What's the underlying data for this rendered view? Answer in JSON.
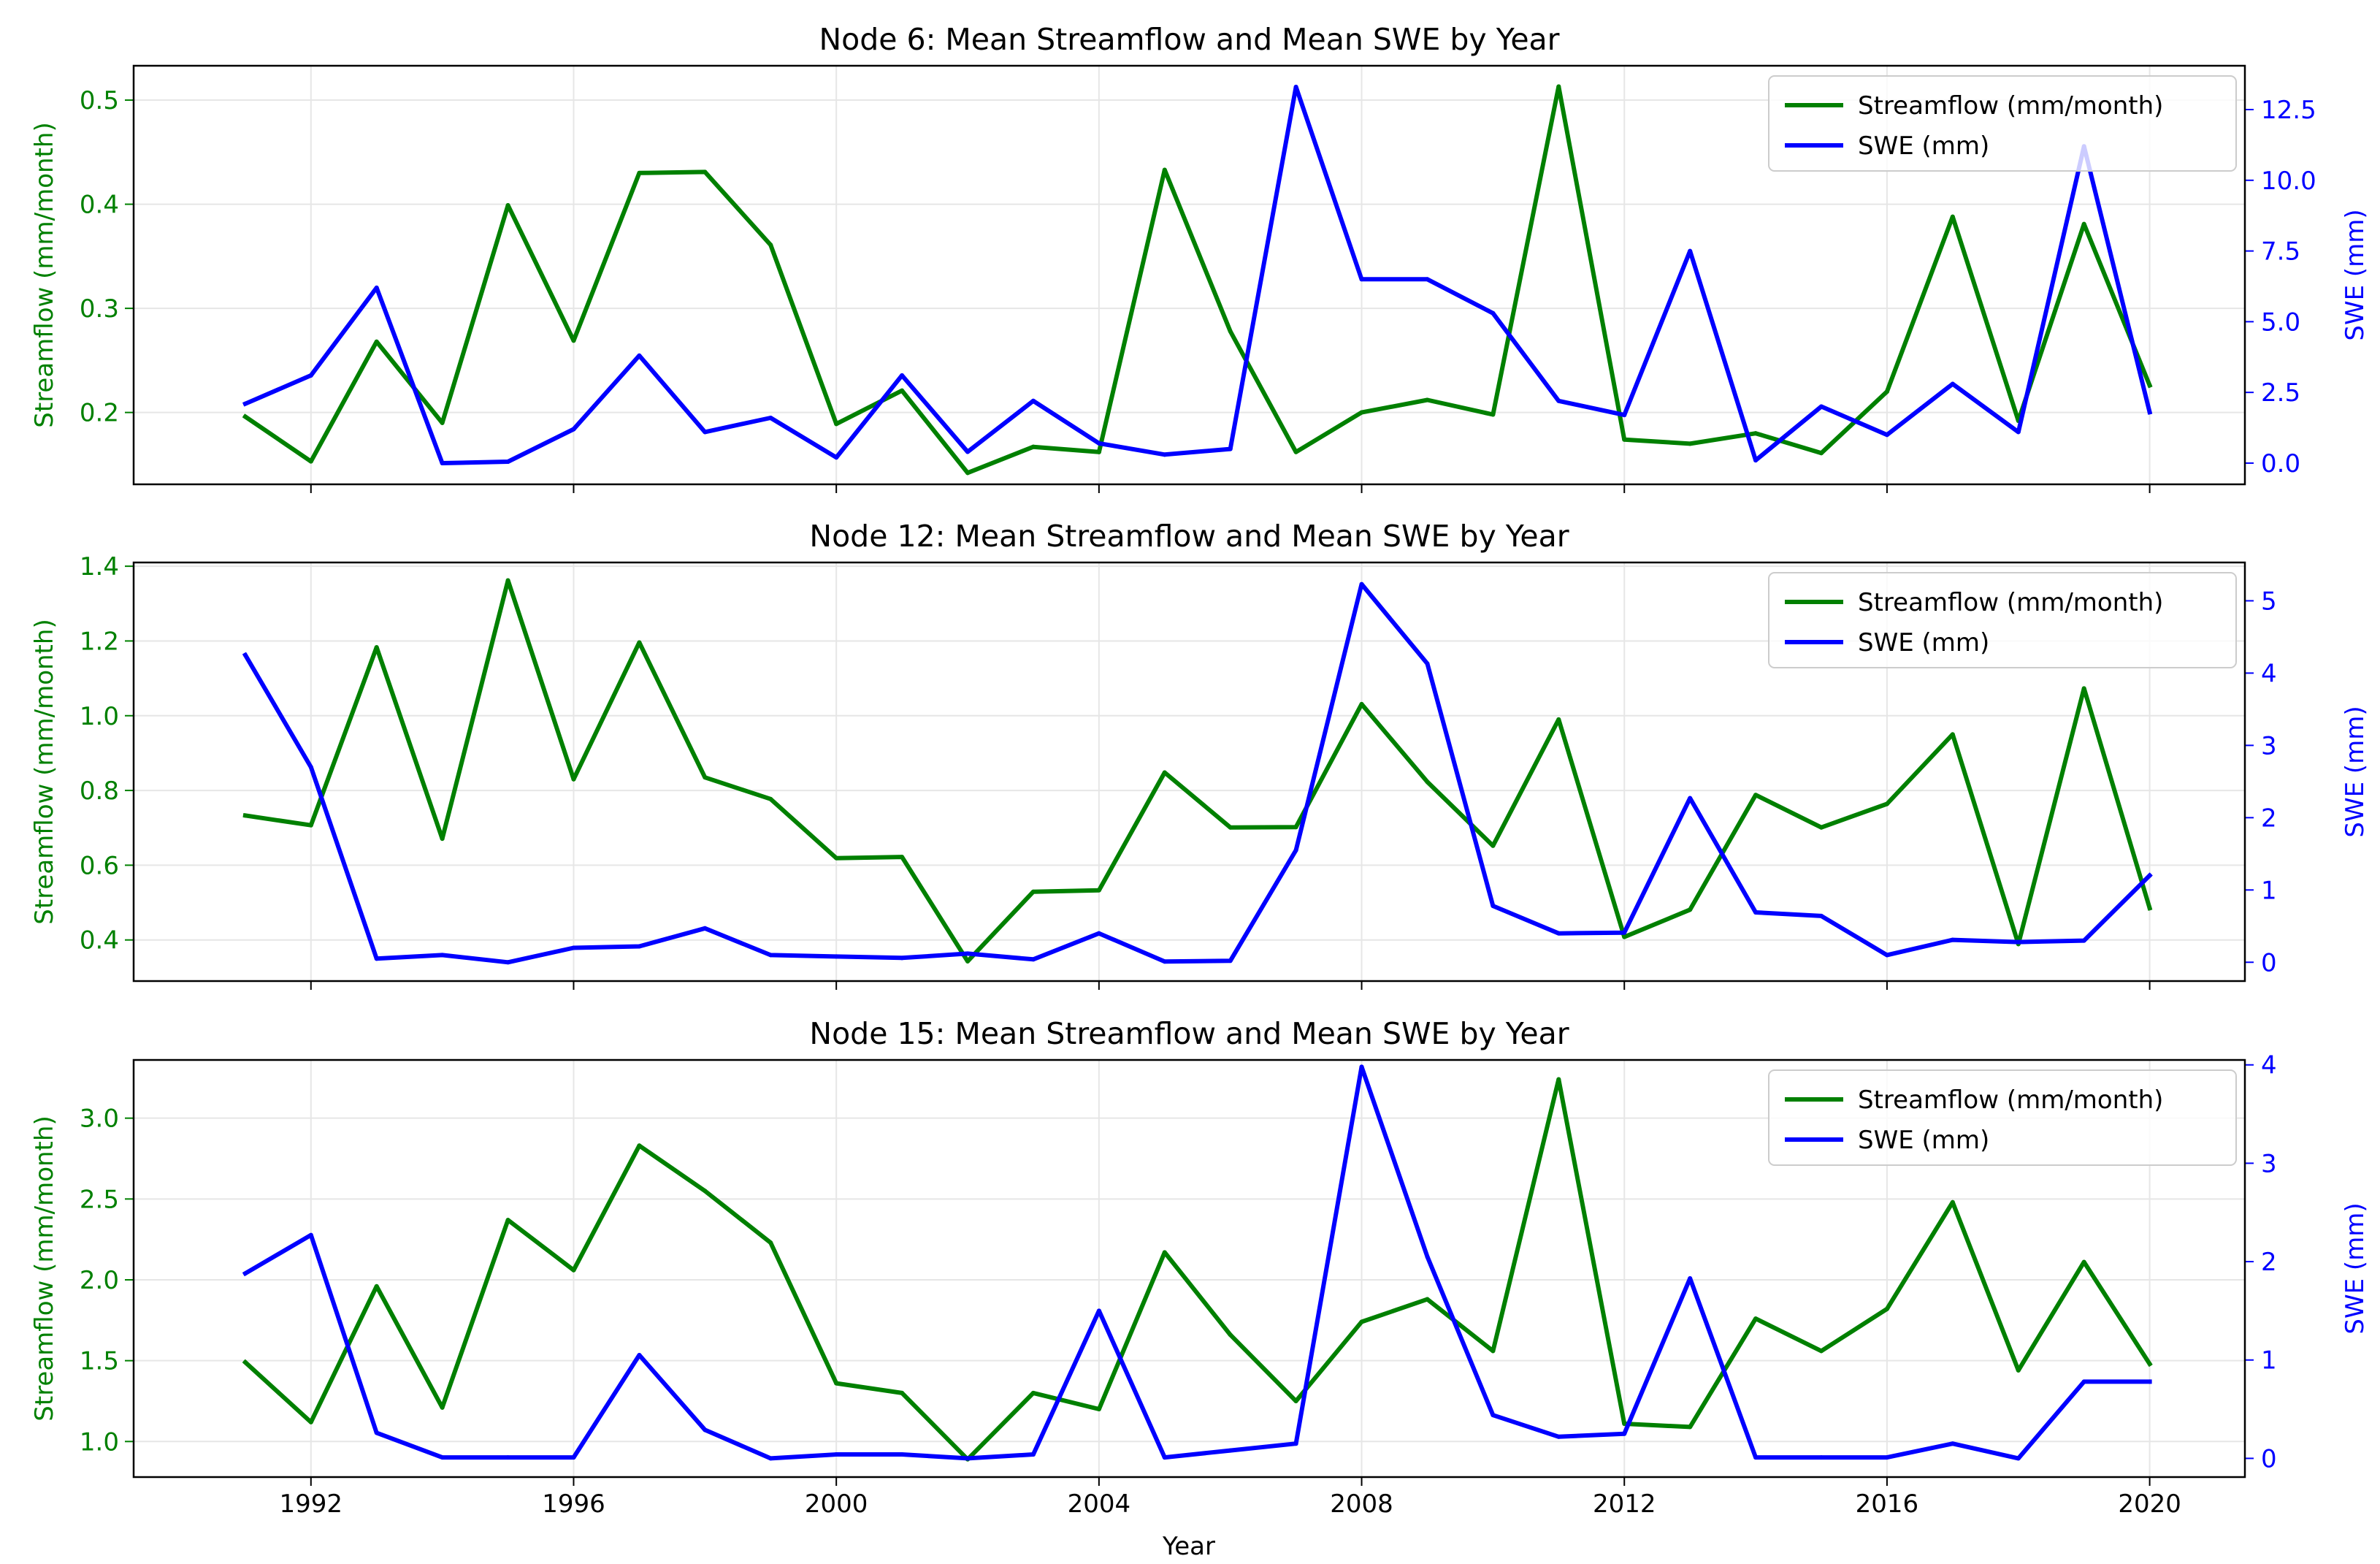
{
  "figure": {
    "xlabel": "Year",
    "colors": {
      "streamflow": "#008000",
      "swe": "#0000ff",
      "grid": "#e6e6e6",
      "axis": "#000000"
    }
  },
  "chart_data": [
    {
      "type": "line",
      "title": "Node 6: Mean Streamflow and Mean SWE by Year",
      "xlabel": "Year",
      "ylabel": "Streamflow (mm/month)",
      "y2label": "SWE (mm)",
      "xlim": [
        1989.3,
        2021.45
      ],
      "xticks": [
        1992,
        1996,
        2000,
        2004,
        2008,
        2012,
        2016,
        2020
      ],
      "ylim": [
        0.131,
        0.533
      ],
      "yticks": [
        0.2,
        0.3,
        0.4,
        0.5
      ],
      "ytick_labels": [
        "0.2",
        "0.3",
        "0.4",
        "0.5"
      ],
      "y2lim": [
        -0.75,
        14.05
      ],
      "y2ticks": [
        0,
        2.5,
        5,
        7.5,
        10,
        12.5
      ],
      "y2tick_labels": [
        "0.0",
        "2.5",
        "5.0",
        "7.5",
        "10.0",
        "12.5"
      ],
      "legend": {
        "location": "top-right",
        "entries": [
          "Streamflow (mm/month)",
          "SWE (mm)"
        ]
      },
      "x": [
        1991,
        1992,
        1993,
        1994,
        1995,
        1996,
        1997,
        1998,
        1999,
        2000,
        2001,
        2002,
        2003,
        2004,
        2005,
        2006,
        2007,
        2008,
        2009,
        2010,
        2011,
        2012,
        2013,
        2014,
        2015,
        2016,
        2017,
        2018,
        2019,
        2020
      ],
      "series": [
        {
          "name": "Streamflow (mm/month)",
          "axis": "left",
          "color": "#008000",
          "values": [
            0.196,
            0.153,
            0.268,
            0.19,
            0.399,
            0.269,
            0.43,
            0.431,
            0.361,
            0.189,
            0.221,
            0.142,
            0.167,
            0.162,
            0.433,
            0.278,
            0.162,
            0.2,
            0.212,
            0.198,
            0.513,
            0.174,
            0.17,
            0.18,
            0.161,
            0.22,
            0.388,
            0.192,
            0.381,
            0.226
          ]
        },
        {
          "name": "SWE (mm)",
          "axis": "right",
          "color": "#0000ff",
          "values": [
            2.1,
            3.1,
            6.2,
            0.0,
            0.05,
            1.2,
            3.8,
            1.1,
            1.6,
            0.2,
            3.1,
            0.4,
            2.2,
            0.7,
            0.3,
            0.5,
            13.3,
            6.5,
            6.5,
            5.3,
            2.2,
            1.7,
            7.5,
            0.1,
            2.0,
            1.0,
            2.8,
            1.1,
            11.2,
            1.8
          ]
        }
      ]
    },
    {
      "type": "line",
      "title": "Node 12: Mean Streamflow and Mean SWE by Year",
      "xlabel": "Year",
      "ylabel": "Streamflow (mm/month)",
      "y2label": "SWE (mm)",
      "xlim": [
        1989.3,
        2021.45
      ],
      "xticks": [
        1992,
        1996,
        2000,
        2004,
        2008,
        2012,
        2016,
        2020
      ],
      "ylim": [
        0.29,
        1.41
      ],
      "yticks": [
        0.4,
        0.6,
        0.8,
        1.0,
        1.2,
        1.4
      ],
      "ytick_labels": [
        "0.4",
        "0.6",
        "0.8",
        "1.0",
        "1.2",
        "1.4"
      ],
      "y2lim": [
        -0.26,
        5.53
      ],
      "y2ticks": [
        0,
        1,
        2,
        3,
        4,
        5
      ],
      "y2tick_labels": [
        "0",
        "1",
        "2",
        "3",
        "4",
        "5"
      ],
      "legend": {
        "location": "top-right",
        "entries": [
          "Streamflow (mm/month)",
          "SWE (mm)"
        ]
      },
      "x": [
        1991,
        1992,
        1993,
        1994,
        1995,
        1996,
        1997,
        1998,
        1999,
        2000,
        2001,
        2002,
        2003,
        2004,
        2005,
        2006,
        2007,
        2008,
        2009,
        2010,
        2011,
        2012,
        2013,
        2014,
        2015,
        2016,
        2017,
        2018,
        2019,
        2020
      ],
      "series": [
        {
          "name": "Streamflow (mm/month)",
          "axis": "left",
          "color": "#008000",
          "values": [
            0.733,
            0.707,
            1.183,
            0.671,
            1.362,
            0.83,
            1.196,
            0.835,
            0.777,
            0.619,
            0.622,
            0.343,
            0.529,
            0.533,
            0.848,
            0.701,
            0.702,
            1.031,
            0.823,
            0.652,
            0.99,
            0.408,
            0.481,
            0.788,
            0.701,
            0.764,
            0.95,
            0.389,
            1.073,
            0.485
          ]
        },
        {
          "name": "SWE (mm)",
          "axis": "right",
          "color": "#0000ff",
          "values": [
            4.25,
            2.7,
            0.05,
            0.1,
            0.0,
            0.2,
            0.22,
            0.47,
            0.1,
            0.08,
            0.06,
            0.12,
            0.04,
            0.4,
            0.01,
            0.02,
            1.55,
            5.23,
            4.13,
            0.78,
            0.4,
            0.41,
            2.27,
            0.69,
            0.64,
            0.1,
            0.31,
            0.28,
            0.3,
            1.2
          ]
        }
      ]
    },
    {
      "type": "line",
      "title": "Node 15: Mean Streamflow and Mean SWE by Year",
      "xlabel": "Year",
      "ylabel": "Streamflow (mm/month)",
      "y2label": "SWE (mm)",
      "xlim": [
        1989.3,
        2021.45
      ],
      "xticks": [
        1992,
        1996,
        2000,
        2004,
        2008,
        2012,
        2016,
        2020
      ],
      "ylim": [
        0.78,
        3.36
      ],
      "yticks": [
        1.0,
        1.5,
        2.0,
        2.5,
        3.0
      ],
      "ytick_labels": [
        "1.0",
        "1.5",
        "2.0",
        "2.5",
        "3.0"
      ],
      "y2lim": [
        -0.19,
        4.05
      ],
      "y2ticks": [
        0,
        1,
        2,
        3,
        4
      ],
      "y2tick_labels": [
        "0",
        "1",
        "2",
        "3",
        "4"
      ],
      "legend": {
        "location": "top-right",
        "entries": [
          "Streamflow (mm/month)",
          "SWE (mm)"
        ]
      },
      "x": [
        1991,
        1992,
        1993,
        1994,
        1995,
        1996,
        1997,
        1998,
        1999,
        2000,
        2001,
        2002,
        2003,
        2004,
        2005,
        2006,
        2007,
        2008,
        2009,
        2010,
        2011,
        2012,
        2013,
        2014,
        2015,
        2016,
        2017,
        2018,
        2019,
        2020
      ],
      "series": [
        {
          "name": "Streamflow (mm/month)",
          "axis": "left",
          "color": "#008000",
          "values": [
            1.49,
            1.12,
            1.96,
            1.21,
            2.37,
            2.06,
            2.83,
            2.55,
            2.23,
            1.36,
            1.3,
            0.89,
            1.3,
            1.2,
            2.17,
            1.66,
            1.25,
            1.74,
            1.88,
            1.56,
            3.24,
            1.11,
            1.09,
            1.76,
            1.56,
            1.82,
            2.48,
            1.44,
            2.11,
            1.48
          ]
        },
        {
          "name": "SWE (mm)",
          "axis": "right",
          "color": "#0000ff",
          "values": [
            1.88,
            2.27,
            0.26,
            0.01,
            0.01,
            0.01,
            1.05,
            0.29,
            0.0,
            0.04,
            0.04,
            0.0,
            0.04,
            1.5,
            0.01,
            0.08,
            0.15,
            3.98,
            2.05,
            0.44,
            0.22,
            0.25,
            1.83,
            0.01,
            0.01,
            0.01,
            0.15,
            0.0,
            0.78,
            0.78
          ]
        }
      ]
    }
  ]
}
